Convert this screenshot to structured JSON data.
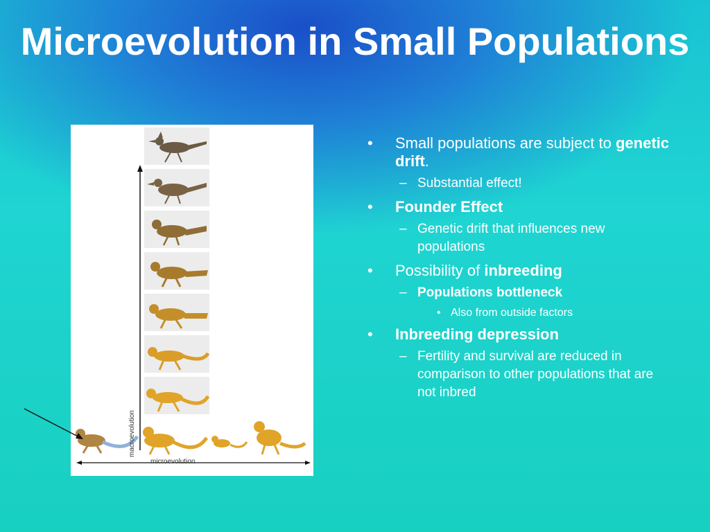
{
  "slide": {
    "title": "Microevolution in Small Populations"
  },
  "figure": {
    "vertical_label": "macroevolution",
    "horizontal_label": "microevolution",
    "macro_stages": 7,
    "micro_variants": 4
  },
  "bullets": {
    "b1_pre": "Small populations are subject to ",
    "b1_bold": "genetic drift",
    "b1_post": ".",
    "b1_sub": "Substantial effect!",
    "b2_bold": "Founder Effect",
    "b2_sub": "Genetic drift that influences new populations",
    "b3_pre": "Possibility of ",
    "b3_bold": "inbreeding",
    "b3_sub_bold": "Populations bottleneck",
    "b3_subsub": "Also from outside factors",
    "b4_bold": "Inbreeding depression",
    "b4_sub": "Fertility and survival are reduced in comparison to other populations that are not inbred",
    "bullet_marker": "•",
    "dash_marker": "–"
  },
  "colors": {
    "background_top": "#1a4fc8",
    "background_bottom": "#18d0c0",
    "text": "#ffffff",
    "lizard": "#e0a429",
    "bird": "#6b5a45"
  }
}
